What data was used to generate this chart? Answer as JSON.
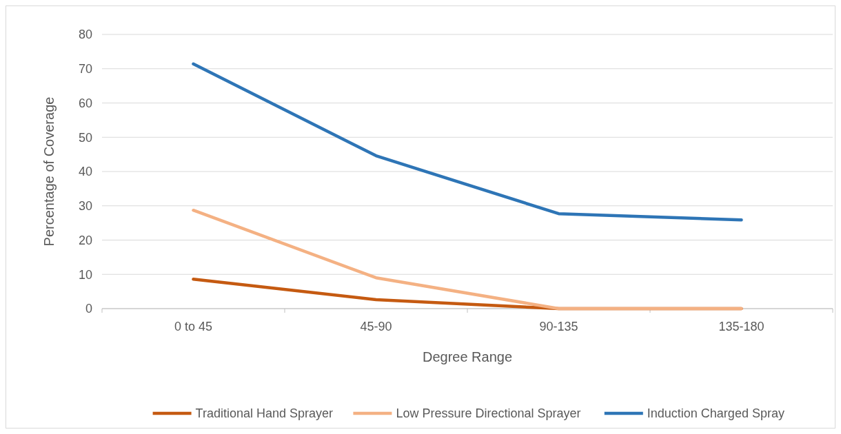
{
  "chart_data": {
    "type": "line",
    "xlabel": "Degree Range",
    "ylabel": "Percentage of Coverage",
    "categories": [
      "0 to 45",
      "45-90",
      "90-135",
      "135-180"
    ],
    "series": [
      {
        "name": "Traditional Hand Sprayer",
        "color": "#c55a11",
        "values": [
          8.6,
          2.6,
          0,
          0
        ]
      },
      {
        "name": "Low Pressure Directional Sprayer",
        "color": "#f4b183",
        "values": [
          28.7,
          9.0,
          0,
          0
        ]
      },
      {
        "name": "Induction Charged Spray",
        "color": "#2e75b6",
        "values": [
          71.4,
          44.6,
          27.7,
          25.9
        ]
      }
    ],
    "ylim": [
      0,
      80
    ],
    "yticks": [
      0,
      10,
      20,
      30,
      40,
      50,
      60,
      70,
      80
    ],
    "grid": "y",
    "legend": "bottom",
    "marker": "none",
    "line_style": "solid"
  }
}
